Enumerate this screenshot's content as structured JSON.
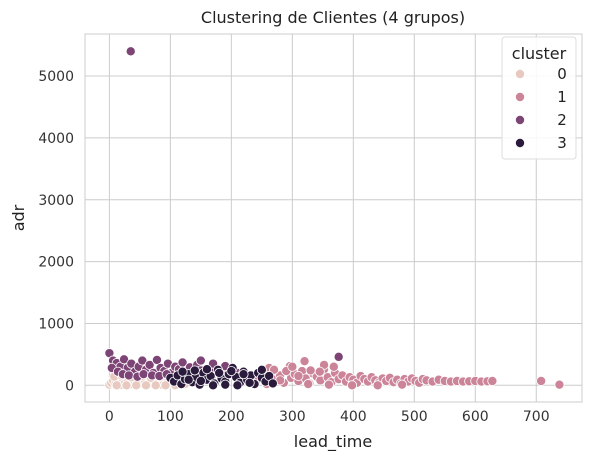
{
  "chart_data": {
    "type": "scatter",
    "title": "Clustering de Clientes (4 grupos)",
    "xlabel": "lead_time",
    "ylabel": "adr",
    "xlim": [
      -40,
      775
    ],
    "ylim": [
      -270,
      5680
    ],
    "xticks": [
      0,
      100,
      200,
      300,
      400,
      500,
      600,
      700
    ],
    "yticks": [
      0,
      1000,
      2000,
      3000,
      4000,
      5000
    ],
    "grid": true,
    "legend": {
      "title": "cluster",
      "placement": "top-right"
    },
    "series": [
      {
        "name": "0",
        "color": "#e8c9c0",
        "points": [
          [
            0,
            10
          ],
          [
            3,
            40
          ],
          [
            6,
            80
          ],
          [
            10,
            20
          ],
          [
            14,
            60
          ],
          [
            18,
            5
          ],
          [
            22,
            110
          ],
          [
            26,
            40
          ],
          [
            30,
            75
          ],
          [
            34,
            15
          ],
          [
            38,
            95
          ],
          [
            42,
            50
          ],
          [
            46,
            25
          ],
          [
            50,
            70
          ],
          [
            54,
            30
          ],
          [
            58,
            90
          ],
          [
            62,
            15
          ],
          [
            66,
            55
          ],
          [
            70,
            35
          ],
          [
            74,
            80
          ],
          [
            78,
            20
          ],
          [
            82,
            60
          ],
          [
            86,
            10
          ],
          [
            90,
            40
          ],
          [
            94,
            70
          ],
          [
            98,
            25
          ],
          [
            102,
            50
          ],
          [
            106,
            15
          ],
          [
            110,
            60
          ],
          [
            115,
            30
          ],
          [
            120,
            45
          ],
          [
            8,
            140
          ],
          [
            20,
            160
          ],
          [
            36,
            130
          ],
          [
            52,
            150
          ],
          [
            68,
            120
          ],
          [
            84,
            140
          ],
          [
            100,
            110
          ],
          [
            12,
            0
          ],
          [
            28,
            0
          ],
          [
            44,
            0
          ],
          [
            60,
            0
          ],
          [
            76,
            0
          ],
          [
            92,
            0
          ],
          [
            108,
            0
          ],
          [
            124,
            20
          ]
        ]
      },
      {
        "name": "1",
        "color": "#cc8598",
        "points": [
          [
            240,
            60
          ],
          [
            250,
            140
          ],
          [
            258,
            20
          ],
          [
            265,
            200
          ],
          [
            272,
            90
          ],
          [
            280,
            160
          ],
          [
            286,
            40
          ],
          [
            292,
            250
          ],
          [
            298,
            120
          ],
          [
            304,
            180
          ],
          [
            310,
            70
          ],
          [
            316,
            230
          ],
          [
            322,
            110
          ],
          [
            328,
            30
          ],
          [
            334,
            190
          ],
          [
            340,
            140
          ],
          [
            346,
            80
          ],
          [
            352,
            260
          ],
          [
            358,
            130
          ],
          [
            364,
            50
          ],
          [
            370,
            200
          ],
          [
            376,
            100
          ],
          [
            382,
            160
          ],
          [
            388,
            60
          ],
          [
            394,
            130
          ],
          [
            400,
            90
          ],
          [
            406,
            40
          ],
          [
            412,
            150
          ],
          [
            418,
            100
          ],
          [
            424,
            60
          ],
          [
            430,
            130
          ],
          [
            436,
            80
          ],
          [
            442,
            40
          ],
          [
            448,
            110
          ],
          [
            454,
            70
          ],
          [
            460,
            120
          ],
          [
            466,
            50
          ],
          [
            472,
            90
          ],
          [
            478,
            30
          ],
          [
            484,
            100
          ],
          [
            490,
            60
          ],
          [
            496,
            110
          ],
          [
            502,
            70
          ],
          [
            508,
            40
          ],
          [
            514,
            100
          ],
          [
            520,
            80
          ],
          [
            530,
            60
          ],
          [
            540,
            90
          ],
          [
            550,
            70
          ],
          [
            560,
            60
          ],
          [
            570,
            70
          ],
          [
            580,
            60
          ],
          [
            590,
            65
          ],
          [
            600,
            70
          ],
          [
            610,
            60
          ],
          [
            620,
            65
          ],
          [
            628,
            70
          ],
          [
            708,
            70
          ],
          [
            738,
            10
          ],
          [
            262,
            280
          ],
          [
            296,
            310
          ],
          [
            320,
            390
          ],
          [
            352,
            330
          ],
          [
            368,
            300
          ],
          [
            290,
            230
          ],
          [
            330,
            240
          ],
          [
            300,
            300
          ],
          [
            270,
            250
          ],
          [
            345,
            220
          ],
          [
            310,
            150
          ],
          [
            280,
            80
          ],
          [
            326,
            20
          ],
          [
            360,
            10
          ],
          [
            398,
            0
          ],
          [
            440,
            0
          ],
          [
            480,
            10
          ]
        ]
      },
      {
        "name": "2",
        "color": "#7d4476",
        "points": [
          [
            35,
            5400
          ],
          [
            0,
            520
          ],
          [
            6,
            400
          ],
          [
            12,
            360
          ],
          [
            18,
            300
          ],
          [
            24,
            420
          ],
          [
            30,
            280
          ],
          [
            36,
            350
          ],
          [
            42,
            220
          ],
          [
            48,
            300
          ],
          [
            54,
            400
          ],
          [
            60,
            250
          ],
          [
            66,
            330
          ],
          [
            72,
            200
          ],
          [
            78,
            410
          ],
          [
            84,
            280
          ],
          [
            90,
            230
          ],
          [
            96,
            350
          ],
          [
            102,
            200
          ],
          [
            108,
            300
          ],
          [
            114,
            260
          ],
          [
            120,
            370
          ],
          [
            126,
            220
          ],
          [
            132,
            290
          ],
          [
            138,
            180
          ],
          [
            144,
            330
          ],
          [
            150,
            240
          ],
          [
            156,
            200
          ],
          [
            162,
            270
          ],
          [
            168,
            150
          ],
          [
            174,
            230
          ],
          [
            180,
            190
          ],
          [
            186,
            260
          ],
          [
            192,
            160
          ],
          [
            198,
            230
          ],
          [
            204,
            170
          ],
          [
            210,
            200
          ],
          [
            216,
            150
          ],
          [
            222,
            180
          ],
          [
            228,
            130
          ],
          [
            4,
            280
          ],
          [
            14,
            220
          ],
          [
            22,
            180
          ],
          [
            32,
            160
          ],
          [
            46,
            140
          ],
          [
            56,
            180
          ],
          [
            70,
            160
          ],
          [
            82,
            150
          ],
          [
            94,
            180
          ],
          [
            112,
            160
          ],
          [
            134,
            150
          ],
          [
            376,
            460
          ],
          [
            150,
            400
          ],
          [
            170,
            350
          ],
          [
            190,
            310
          ]
        ]
      },
      {
        "name": "3",
        "color": "#2a1b3d",
        "points": [
          [
            100,
            120
          ],
          [
            106,
            60
          ],
          [
            112,
            160
          ],
          [
            118,
            20
          ],
          [
            124,
            100
          ],
          [
            130,
            180
          ],
          [
            136,
            50
          ],
          [
            142,
            140
          ],
          [
            148,
            10
          ],
          [
            154,
            200
          ],
          [
            160,
            90
          ],
          [
            166,
            150
          ],
          [
            172,
            30
          ],
          [
            178,
            250
          ],
          [
            184,
            110
          ],
          [
            190,
            60
          ],
          [
            196,
            180
          ],
          [
            202,
            280
          ],
          [
            208,
            130
          ],
          [
            214,
            40
          ],
          [
            220,
            220
          ],
          [
            226,
            90
          ],
          [
            232,
            160
          ],
          [
            238,
            20
          ],
          [
            244,
            200
          ],
          [
            250,
            120
          ],
          [
            256,
            60
          ],
          [
            262,
            150
          ],
          [
            268,
            30
          ],
          [
            120,
            220
          ],
          [
            140,
            240
          ],
          [
            160,
            260
          ],
          [
            180,
            200
          ],
          [
            200,
            230
          ],
          [
            220,
            180
          ],
          [
            170,
            0
          ],
          [
            190,
            10
          ],
          [
            210,
            0
          ],
          [
            230,
            40
          ],
          [
            150,
            70
          ],
          [
            250,
            250
          ],
          [
            130,
            90
          ]
        ]
      }
    ]
  }
}
